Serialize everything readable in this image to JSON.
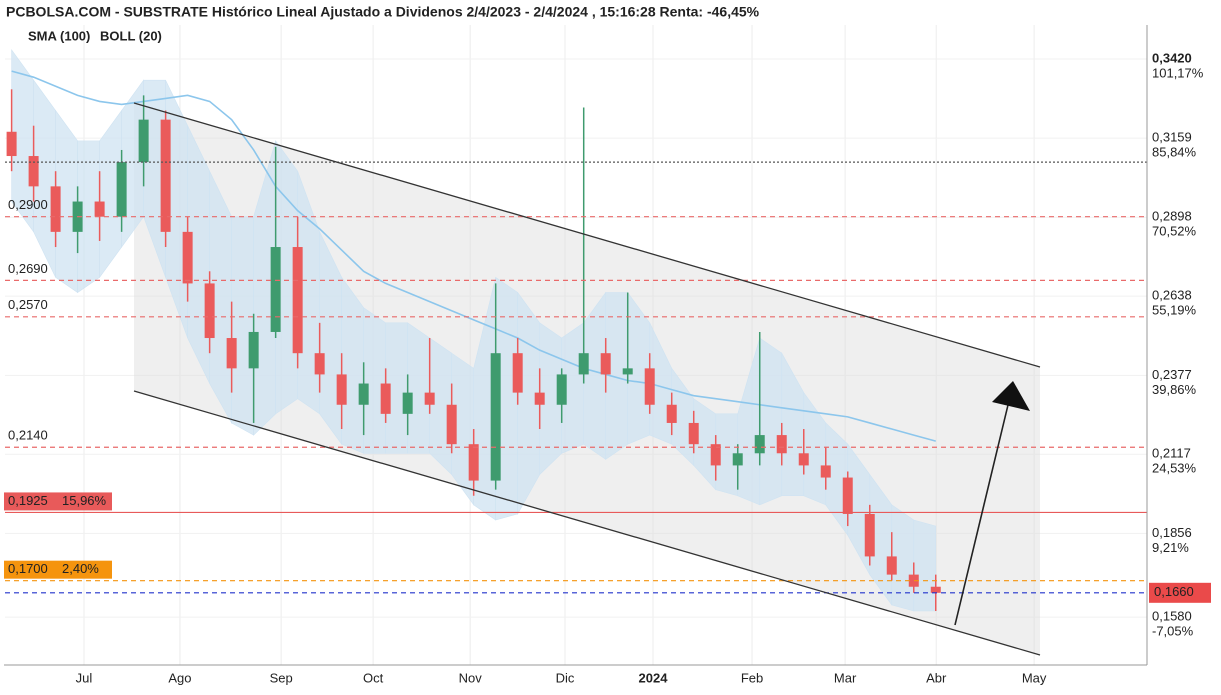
{
  "chart_data": {
    "type": "candlestick",
    "title": "PCBOLSA.COM - SUBSTRATE Histórico Lineal Ajustado a Dividenos 2/4/2023 - 2/4/2024 , 15:16:28 Renta: -46,45%",
    "colors": {
      "up": "#3f9b6e",
      "down": "#ea5b5b"
    },
    "x": [
      0,
      1,
      2,
      3,
      4,
      5,
      6,
      7,
      8,
      9,
      10,
      11,
      12,
      13,
      14,
      15,
      16,
      17,
      18,
      19,
      20,
      21,
      22,
      23,
      24,
      25,
      26,
      27,
      28,
      29,
      30,
      31,
      32,
      33,
      34,
      35,
      36,
      37,
      38,
      39,
      40,
      41,
      42
    ],
    "open": [
      0.318,
      0.31,
      0.3,
      0.285,
      0.295,
      0.29,
      0.308,
      0.322,
      0.285,
      0.268,
      0.25,
      0.24,
      0.252,
      0.28,
      0.245,
      0.238,
      0.228,
      0.235,
      0.225,
      0.232,
      0.228,
      0.215,
      0.203,
      0.245,
      0.232,
      0.228,
      0.238,
      0.245,
      0.238,
      0.24,
      0.228,
      0.222,
      0.215,
      0.208,
      0.212,
      0.218,
      0.212,
      0.208,
      0.204,
      0.192,
      0.178,
      0.172,
      0.168
    ],
    "high": [
      0.332,
      0.32,
      0.305,
      0.3,
      0.305,
      0.312,
      0.33,
      0.325,
      0.29,
      0.272,
      0.262,
      0.258,
      0.313,
      0.29,
      0.255,
      0.245,
      0.242,
      0.24,
      0.238,
      0.25,
      0.235,
      0.22,
      0.268,
      0.25,
      0.24,
      0.24,
      0.326,
      0.25,
      0.265,
      0.245,
      0.232,
      0.226,
      0.218,
      0.215,
      0.252,
      0.222,
      0.22,
      0.214,
      0.206,
      0.195,
      0.186,
      0.176,
      0.172
    ],
    "low": [
      0.305,
      0.295,
      0.28,
      0.278,
      0.282,
      0.285,
      0.3,
      0.28,
      0.262,
      0.245,
      0.232,
      0.222,
      0.25,
      0.24,
      0.232,
      0.22,
      0.218,
      0.222,
      0.218,
      0.225,
      0.212,
      0.198,
      0.2,
      0.228,
      0.22,
      0.222,
      0.235,
      0.232,
      0.235,
      0.225,
      0.218,
      0.212,
      0.203,
      0.2,
      0.208,
      0.208,
      0.205,
      0.2,
      0.188,
      0.175,
      0.17,
      0.166,
      0.16
    ],
    "close": [
      0.31,
      0.3,
      0.285,
      0.295,
      0.29,
      0.308,
      0.322,
      0.285,
      0.268,
      0.25,
      0.24,
      0.252,
      0.28,
      0.245,
      0.238,
      0.228,
      0.235,
      0.225,
      0.232,
      0.228,
      0.215,
      0.203,
      0.245,
      0.232,
      0.228,
      0.238,
      0.245,
      0.238,
      0.24,
      0.228,
      0.222,
      0.215,
      0.208,
      0.212,
      0.218,
      0.212,
      0.208,
      0.204,
      0.192,
      0.178,
      0.172,
      0.168,
      0.166
    ],
    "sma": {
      "name": "SMA (100)",
      "color": "#8cc6ec",
      "values": [
        0.338,
        0.336,
        0.333,
        0.33,
        0.328,
        0.327,
        0.328,
        0.329,
        0.33,
        0.328,
        0.322,
        0.312,
        0.3,
        0.292,
        0.286,
        0.279,
        0.272,
        0.268,
        0.265,
        0.262,
        0.259,
        0.256,
        0.253,
        0.25,
        0.246,
        0.243,
        0.24,
        0.238,
        0.236,
        0.235,
        0.233,
        0.231,
        0.23,
        0.229,
        0.228,
        0.227,
        0.226,
        0.225,
        0.224,
        0.222,
        0.22,
        0.218,
        0.216
      ]
    },
    "bollinger": {
      "name": "BOLL (20)",
      "color": "#c6c6c6",
      "fill": "#cfe3f2",
      "upper": [
        0.345,
        0.335,
        0.325,
        0.315,
        0.315,
        0.325,
        0.335,
        0.335,
        0.32,
        0.305,
        0.29,
        0.29,
        0.315,
        0.305,
        0.285,
        0.27,
        0.26,
        0.255,
        0.255,
        0.25,
        0.245,
        0.24,
        0.27,
        0.265,
        0.255,
        0.25,
        0.255,
        0.265,
        0.265,
        0.255,
        0.24,
        0.23,
        0.225,
        0.225,
        0.25,
        0.245,
        0.232,
        0.222,
        0.215,
        0.205,
        0.195,
        0.19,
        0.188
      ],
      "lower": [
        0.295,
        0.285,
        0.27,
        0.265,
        0.27,
        0.28,
        0.29,
        0.27,
        0.25,
        0.235,
        0.222,
        0.218,
        0.225,
        0.23,
        0.225,
        0.215,
        0.212,
        0.212,
        0.212,
        0.212,
        0.205,
        0.195,
        0.19,
        0.192,
        0.205,
        0.212,
        0.215,
        0.21,
        0.215,
        0.218,
        0.215,
        0.208,
        0.2,
        0.198,
        0.195,
        0.198,
        0.198,
        0.195,
        0.185,
        0.172,
        0.162,
        0.16,
        0.16
      ]
    },
    "xlim": [
      -0.3,
      51.6
    ],
    "xticks": [
      {
        "value": 3.29,
        "label": "Jul"
      },
      {
        "value": 7.65,
        "label": "Ago"
      },
      {
        "value": 12.25,
        "label": "Sep"
      },
      {
        "value": 16.43,
        "label": "Oct"
      },
      {
        "value": 20.84,
        "label": "Nov"
      },
      {
        "value": 25.15,
        "label": "Dic"
      },
      {
        "value": 29.15,
        "label": "2024"
      },
      {
        "value": 33.65,
        "label": "Feb"
      },
      {
        "value": 37.88,
        "label": "Mar"
      },
      {
        "value": 42.02,
        "label": "Abr"
      },
      {
        "value": 46.47,
        "label": "May"
      }
    ],
    "ylim": [
      0.1422,
      0.3532
    ],
    "yticks": [
      {
        "value": 0.342,
        "label": "0,3420",
        "pct": "101,17%"
      },
      {
        "value": 0.3159,
        "label": "0,3159",
        "pct": "85,84%"
      },
      {
        "value": 0.2898,
        "label": "0,2898",
        "pct": "70,52%"
      },
      {
        "value": 0.2638,
        "label": "0,2638",
        "pct": "55,19%"
      },
      {
        "value": 0.2377,
        "label": "0,2377",
        "pct": "39,86%"
      },
      {
        "value": 0.2117,
        "label": "0,2117",
        "pct": "24,53%"
      },
      {
        "value": 0.1856,
        "label": "0,1856",
        "pct": "9,21%"
      },
      {
        "value": 0.158,
        "label": "0,1580",
        "pct": "-7,05%"
      }
    ],
    "levels": [
      {
        "value": 0.308,
        "color": "#555555",
        "style": "dotted"
      },
      {
        "value": 0.29,
        "label": "0,2900",
        "color": "#e96a6a",
        "style": "dashed"
      },
      {
        "value": 0.269,
        "label": "0,2690",
        "color": "#e96a6a",
        "style": "dashed"
      },
      {
        "value": 0.257,
        "label": "0,2570",
        "color": "#e96a6a",
        "style": "dashed"
      },
      {
        "value": 0.214,
        "label": "0,2140",
        "color": "#e96a6a",
        "style": "dashed"
      },
      {
        "value": 0.1925,
        "label": "0,1925",
        "pct": "15,96%",
        "color": "#e85a5a",
        "style": "solid",
        "boxed": true
      },
      {
        "value": 0.17,
        "label": "0,1700",
        "pct": "2,40%",
        "color": "#f5940e",
        "style": "dashed",
        "boxed": true
      },
      {
        "value": 0.166,
        "label": "0,1660",
        "color": "#2233cc",
        "box_color": "#ea4a4a",
        "style": "dashed",
        "right_box": true
      }
    ]
  }
}
